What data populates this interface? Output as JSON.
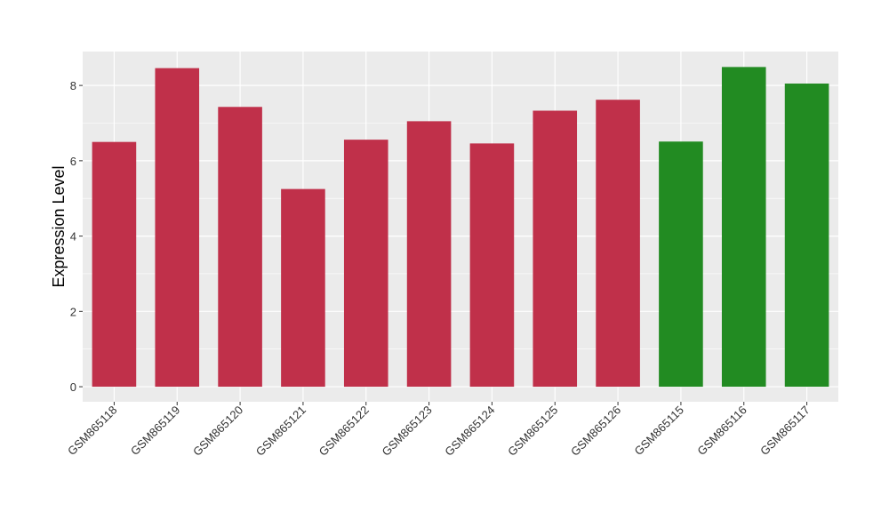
{
  "chart_data": {
    "type": "bar",
    "title": "",
    "xlabel": "",
    "ylabel": "Expression Level",
    "categories": [
      "GSM865118",
      "GSM865119",
      "GSM865120",
      "GSM865121",
      "GSM865122",
      "GSM865123",
      "GSM865124",
      "GSM865125",
      "GSM865126",
      "GSM865115",
      "GSM865116",
      "GSM865117"
    ],
    "values": [
      6.5,
      8.46,
      7.43,
      5.25,
      6.56,
      7.05,
      6.46,
      7.33,
      7.62,
      6.51,
      8.49,
      8.05
    ],
    "colors": [
      "#C0304A",
      "#C0304A",
      "#C0304A",
      "#C0304A",
      "#C0304A",
      "#C0304A",
      "#C0304A",
      "#C0304A",
      "#C0304A",
      "#228B22",
      "#228B22",
      "#228B22"
    ],
    "ylim": [
      -0.4,
      8.9
    ],
    "yticks": [
      0,
      2,
      4,
      6,
      8
    ],
    "grid": true,
    "legend": "none",
    "panel_background": "#EBEBEB",
    "grid_color": "#FFFFFF"
  }
}
